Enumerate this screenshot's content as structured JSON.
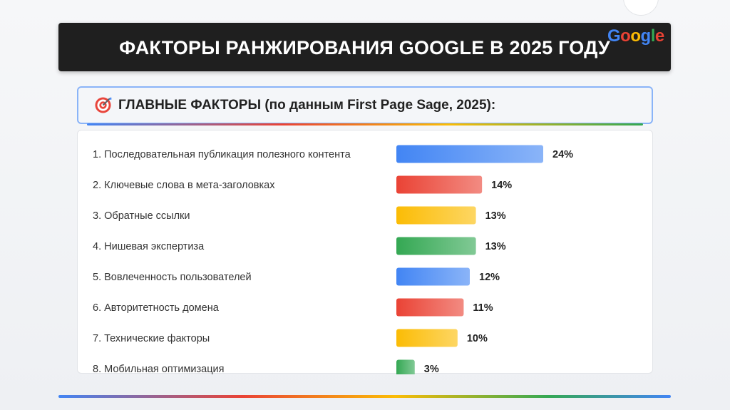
{
  "header": {
    "title": "ФАКТОРЫ РАНЖИРОВАНИЯ GOOGLE В 2025 ГОДУ",
    "logo_letters": [
      {
        "ch": "G",
        "color": "#4285f4"
      },
      {
        "ch": "o",
        "color": "#ea4335"
      },
      {
        "ch": "o",
        "color": "#fbbc05"
      },
      {
        "ch": "g",
        "color": "#4285f4"
      },
      {
        "ch": "l",
        "color": "#34a853"
      },
      {
        "ch": "e",
        "color": "#ea4335"
      }
    ]
  },
  "section": {
    "icon": "target-icon",
    "title": "ГЛАВНЫЕ ФАКТОРЫ (по данным First Page Sage, 2025):"
  },
  "colors": {
    "blue": "#4285f4",
    "red": "#ea4335",
    "yellow": "#fbbc05",
    "green": "#34a853"
  },
  "chart_data": {
    "type": "bar",
    "orientation": "horizontal",
    "title": "",
    "xlabel": "",
    "ylabel": "",
    "xlim": [
      0,
      24
    ],
    "value_suffix": "%",
    "categories": [
      "1. Последовательная публикация полезного контента",
      "2. Ключевые слова в мета-заголовках",
      "3. Обратные ссылки",
      "4. Нишевая экспертиза",
      "5. Вовлеченность пользователей",
      "6. Авторитетность домена",
      "7. Технические факторы",
      "8. Мобильная оптимизация"
    ],
    "values": [
      24,
      14,
      13,
      13,
      12,
      11,
      10,
      3
    ],
    "value_labels": [
      "24%",
      "14%",
      "13%",
      "13%",
      "12%",
      "11%",
      "10%",
      "3%"
    ],
    "bar_colors": [
      "#4285f4",
      "#ea4335",
      "#fbbc05",
      "#34a853",
      "#4285f4",
      "#ea4335",
      "#fbbc05",
      "#34a853"
    ],
    "bar_colors_light": [
      "#8ab4f8",
      "#f28b82",
      "#fdd663",
      "#81c995",
      "#8ab4f8",
      "#f28b82",
      "#fdd663",
      "#81c995"
    ]
  }
}
